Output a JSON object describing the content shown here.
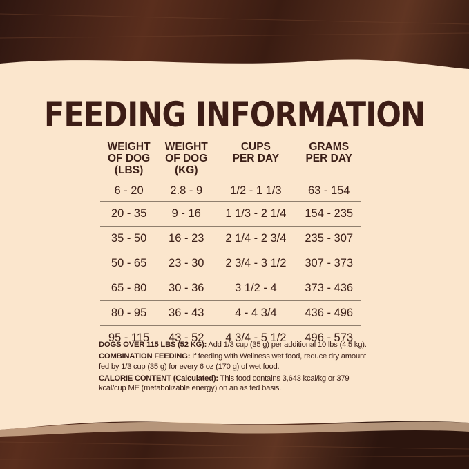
{
  "title": "FEEDING INFORMATION",
  "colors": {
    "background": "#fbe6cd",
    "text": "#3b1f18",
    "wood": "#4a2519"
  },
  "table": {
    "headers": [
      [
        "WEIGHT",
        "OF DOG",
        "(LBS)"
      ],
      [
        "WEIGHT",
        "OF DOG",
        "(KG)"
      ],
      [
        "CUPS",
        "PER DAY"
      ],
      [
        "GRAMS",
        "PER DAY"
      ]
    ],
    "rows": [
      [
        "6 - 20",
        "2.8 - 9",
        "1/2 - 1 1/3",
        "63 - 154"
      ],
      [
        "20 - 35",
        "9 - 16",
        "1 1/3 - 2 1/4",
        "154 - 235"
      ],
      [
        "35 - 50",
        "16 - 23",
        "2 1/4 - 2 3/4",
        "235 - 307"
      ],
      [
        "50 - 65",
        "23 - 30",
        "2 3/4 - 3 1/2",
        "307 - 373"
      ],
      [
        "65 - 80",
        "30 - 36",
        "3 1/2 - 4",
        "373 - 436"
      ],
      [
        "80 - 95",
        "36 - 43",
        "4 - 4 3/4",
        "436 - 496"
      ],
      [
        "95 - 115",
        "43 - 52",
        "4 3/4 - 5 1/2",
        "496 - 573"
      ]
    ]
  },
  "notes": [
    {
      "label": "DOGS OVER 115 LBS (52 KG):",
      "text": " Add 1/3 cup (35 g) per additional 10 lbs (4.5 kg)."
    },
    {
      "label": "COMBINATION FEEDING:",
      "text": " If feeding with Wellness wet food, reduce dry amount fed by 1/3 cup (35 g) for every 6 oz (170 g) of wet food."
    },
    {
      "label": "CALORIE CONTENT (Calculated):",
      "text": " This food contains 3,643 kcal/kg or 379 kcal/cup ME (metabolizable energy) on an as fed basis."
    }
  ]
}
